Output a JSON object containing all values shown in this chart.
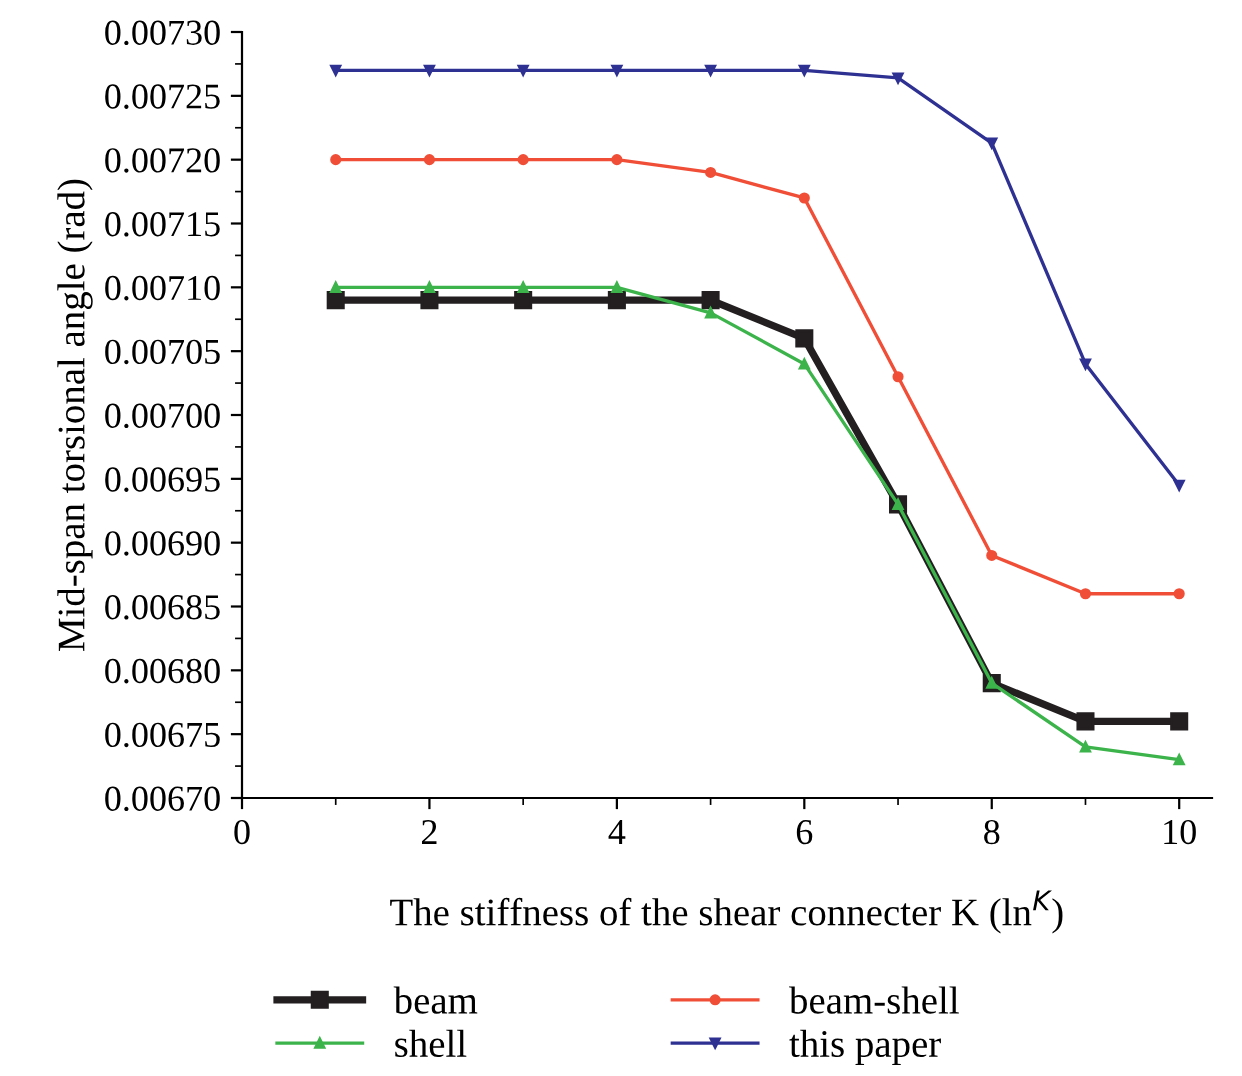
{
  "chart_data": {
    "type": "line",
    "xlabel": "The stiffness of the shear connecter K (ln$^{K}$)",
    "ylabel": "Mid-span torsional angle (rad)",
    "x": [
      1,
      2,
      3,
      4,
      5,
      6,
      7,
      8,
      9,
      10
    ],
    "series": [
      {
        "name": "beam",
        "color": "#231f20",
        "marker": "square",
        "values": [
          0.00709,
          0.00709,
          0.00709,
          0.00709,
          0.00709,
          0.00706,
          0.00693,
          0.00679,
          0.00676,
          0.00676
        ]
      },
      {
        "name": "beam-shell",
        "color": "#f04e37",
        "marker": "circle",
        "values": [
          0.0072,
          0.0072,
          0.0072,
          0.0072,
          0.00719,
          0.00717,
          0.00703,
          0.00689,
          0.00686,
          0.00686
        ]
      },
      {
        "name": "shell",
        "color": "#3cb44b",
        "marker": "triangle",
        "values": [
          0.0071,
          0.0071,
          0.0071,
          0.0071,
          0.00708,
          0.00704,
          0.00693,
          0.00679,
          0.00674,
          0.00673
        ]
      },
      {
        "name": "this paper",
        "color": "#2e3192",
        "marker": "triangle_down",
        "values": [
          0.00727,
          0.00727,
          0.00727,
          0.00727,
          0.00727,
          0.00727,
          0.007264,
          0.007213,
          0.00704,
          0.006945
        ]
      }
    ],
    "xlim": [
      0,
      10.35
    ],
    "xticks": [
      0,
      2,
      4,
      6,
      8,
      10
    ],
    "ylim": [
      0.0067,
      0.0073
    ],
    "yticks": [
      {
        "value": 0.0067,
        "label": "0.00670"
      },
      {
        "value": 0.00675,
        "label": "0.00675"
      },
      {
        "value": 0.0068,
        "label": "0.00680"
      },
      {
        "value": 0.00685,
        "label": "0.00685"
      },
      {
        "value": 0.0069,
        "label": "0.00690"
      },
      {
        "value": 0.00695,
        "label": "0.00695"
      },
      {
        "value": 0.007,
        "label": "0.00700"
      },
      {
        "value": 0.00705,
        "label": "0.00705"
      },
      {
        "value": 0.0071,
        "label": "0.00710"
      },
      {
        "value": 0.00715,
        "label": "0.00715"
      },
      {
        "value": 0.0072,
        "label": "0.00720"
      },
      {
        "value": 0.00725,
        "label": "0.00725"
      },
      {
        "value": 0.0073,
        "label": "0.00730"
      }
    ],
    "grid": false,
    "legend": "bottom",
    "line_style": "solid"
  }
}
